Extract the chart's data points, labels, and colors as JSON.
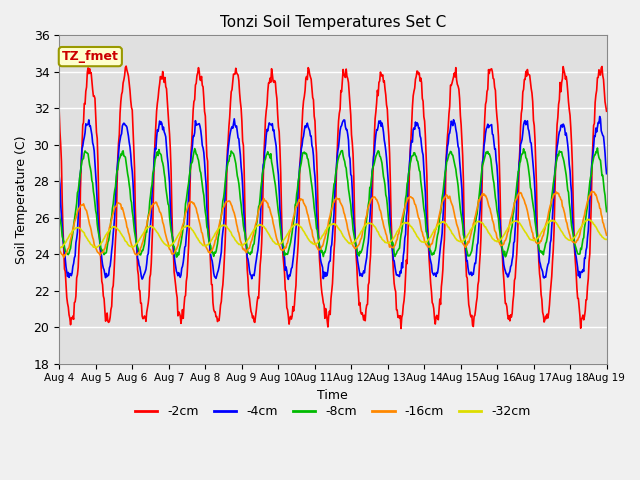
{
  "title": "Tonzi Soil Temperatures Set C",
  "xlabel": "Time",
  "ylabel": "Soil Temperature (C)",
  "ylim": [
    18,
    36
  ],
  "yticks": [
    18,
    20,
    22,
    24,
    26,
    28,
    30,
    32,
    34,
    36
  ],
  "start_day": 4,
  "end_day": 19,
  "depths": [
    "-2cm",
    "-4cm",
    "-8cm",
    "-16cm",
    "-32cm"
  ],
  "colors": [
    "#ff0000",
    "#0000ff",
    "#00bb00",
    "#ff8800",
    "#dddd00"
  ],
  "linewidth": 1.2,
  "amplitudes": [
    6.8,
    4.2,
    2.8,
    1.4,
    0.55
  ],
  "means": [
    27.2,
    27.0,
    26.8,
    25.3,
    24.9
  ],
  "peak_hour": 14.0,
  "phase_hours": [
    0.0,
    1.0,
    2.5,
    5.0,
    8.0
  ],
  "trend_per_day": [
    0.0,
    0.0,
    0.0,
    0.05,
    0.03
  ],
  "legend_labels": [
    "-2cm",
    "-4cm",
    "-8cm",
    "-16cm",
    "-32cm"
  ],
  "annotation_text": "TZ_fmet",
  "fig_facecolor": "#f0f0f0",
  "axes_facecolor": "#e0e0e0",
  "grid_color": "#ffffff",
  "figsize": [
    6.4,
    4.8
  ],
  "dpi": 100
}
